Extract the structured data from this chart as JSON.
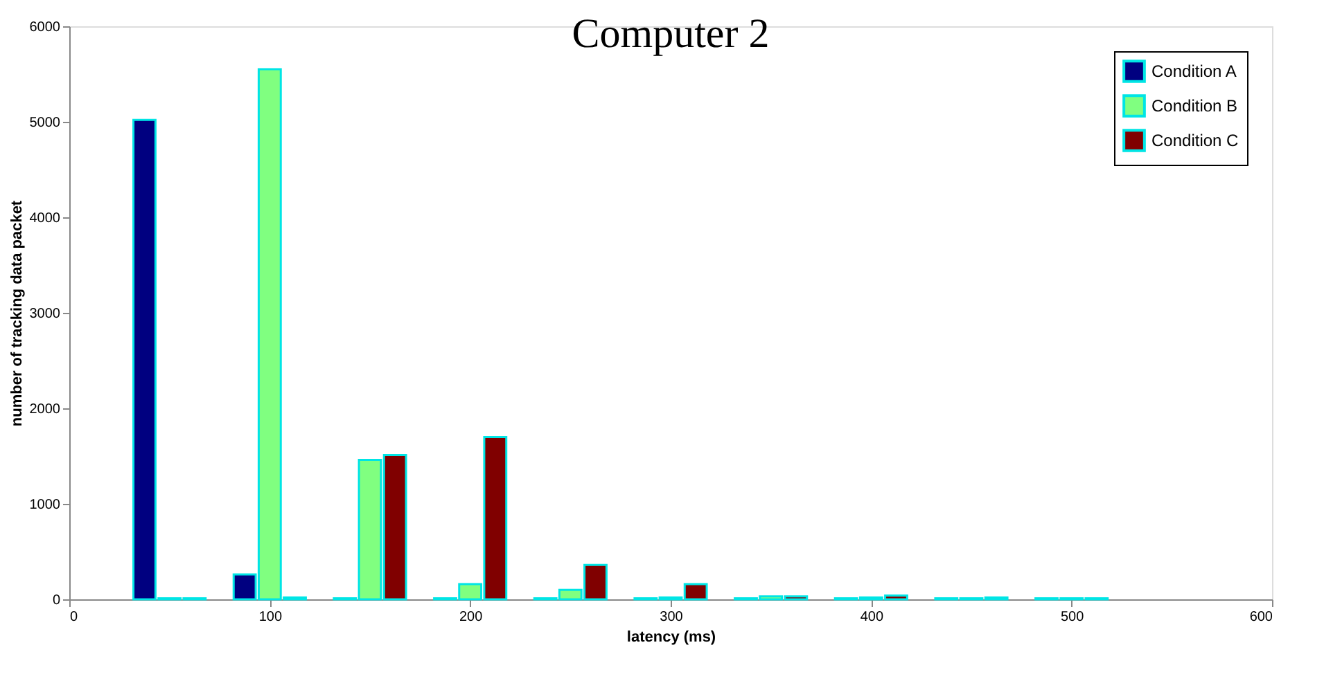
{
  "chart_data": {
    "type": "bar",
    "title": "Computer 2",
    "xlabel": "latency (ms)",
    "ylabel": "number of tracking data packet",
    "xlim": [
      0,
      600
    ],
    "xticks": [
      0,
      100,
      200,
      300,
      400,
      500,
      600
    ],
    "ylim": [
      0,
      6000
    ],
    "yticks": [
      0,
      1000,
      2000,
      3000,
      4000,
      5000,
      6000
    ],
    "grid": false,
    "legend": "top right",
    "series": [
      {
        "name": "Condition A",
        "color": "#000080",
        "x": [
          37.5,
          87.5,
          137.5,
          187.5,
          237.5,
          287.5,
          337.5,
          387.5,
          437.5,
          487.5
        ],
        "values": [
          5020,
          260,
          10,
          10,
          10,
          10,
          10,
          10,
          10,
          10
        ]
      },
      {
        "name": "Condition B",
        "color": "#80ff80",
        "x": [
          50,
          100,
          150,
          200,
          250,
          300,
          350,
          400,
          450,
          500
        ],
        "values": [
          10,
          5550,
          1460,
          160,
          100,
          20,
          30,
          20,
          10,
          10
        ]
      },
      {
        "name": "Condition C",
        "color": "#800000",
        "x": [
          62.5,
          112.5,
          162.5,
          212.5,
          262.5,
          312.5,
          362.5,
          412.5,
          462.5,
          512.5
        ],
        "values": [
          10,
          20,
          1510,
          1700,
          360,
          160,
          30,
          40,
          20,
          10
        ]
      }
    ]
  }
}
